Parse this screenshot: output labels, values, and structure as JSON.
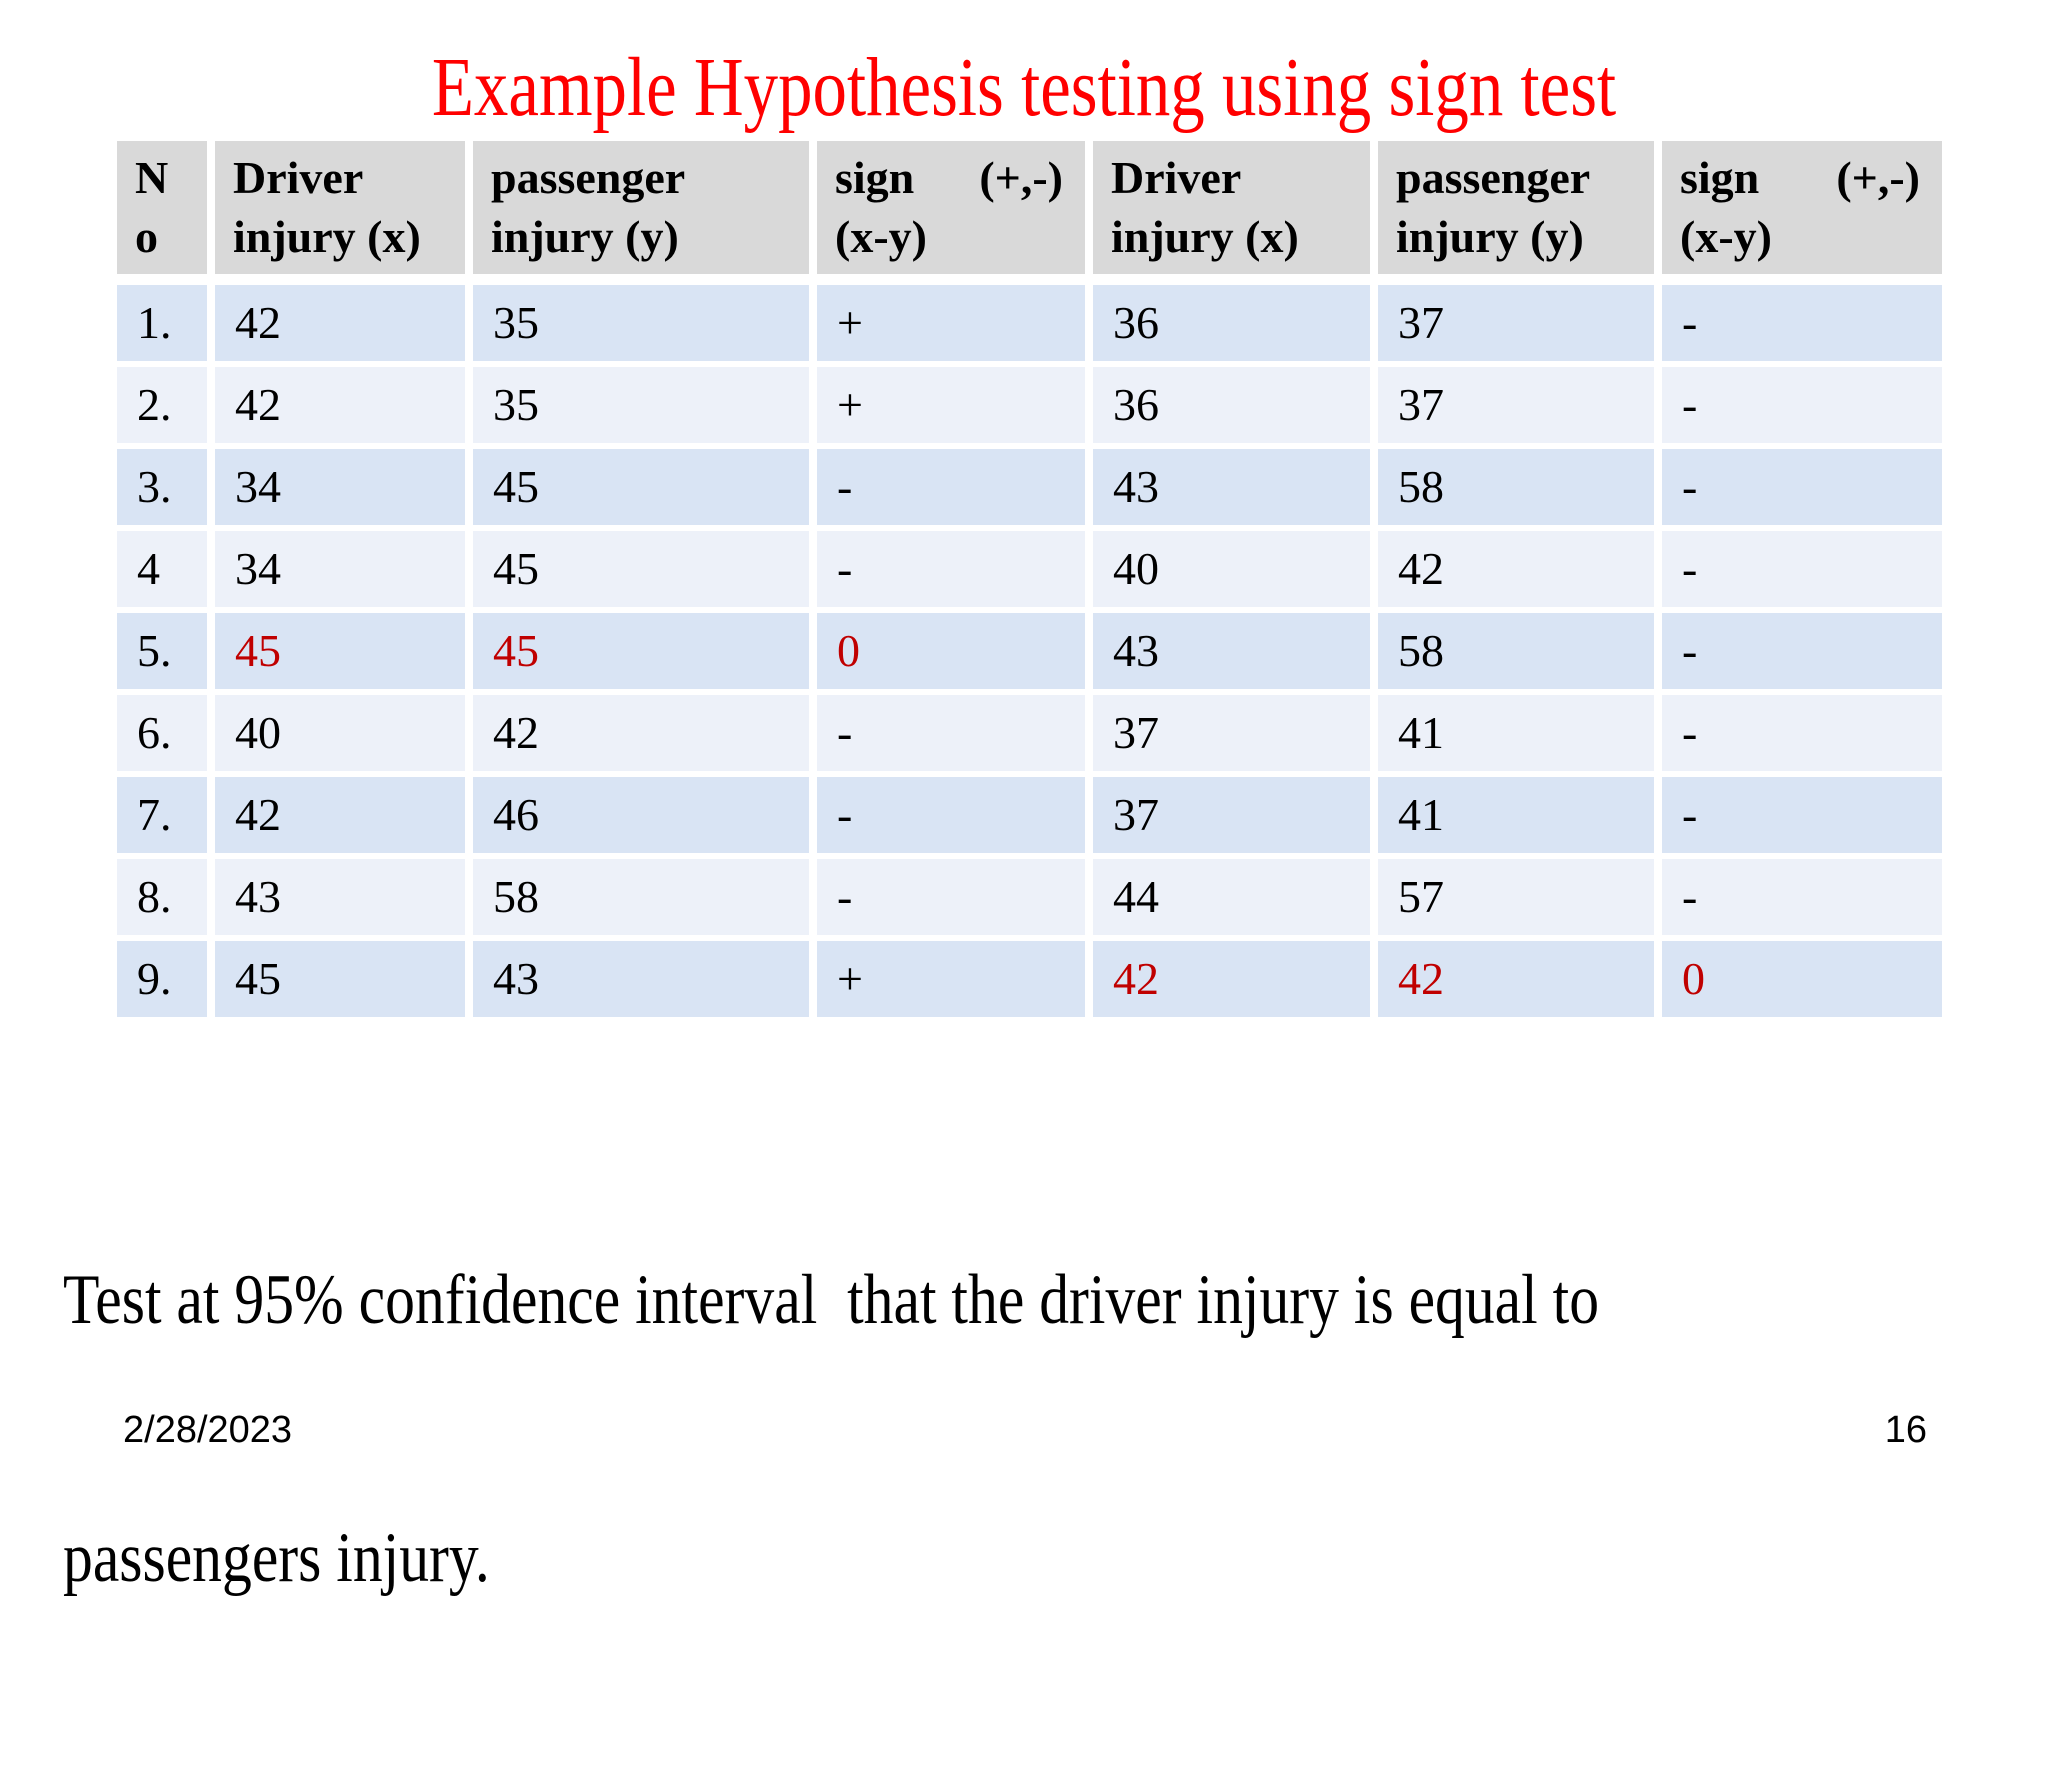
{
  "slide": {
    "title": "Example Hypothesis testing using sign test",
    "body_lines": [
      "Test at 95% confidence interval  that the driver injury is equal to",
      "passengers injury."
    ],
    "footer": {
      "date": "2/28/2023",
      "page_number": "16"
    }
  },
  "colors": {
    "title_red": "#FF0000",
    "highlight_red": "#C00000",
    "header_bg": "#D9D9D9",
    "band_dark": "#D9E4F4",
    "band_light": "#EDF1F9",
    "text": "#000000"
  },
  "table": {
    "columns": [
      {
        "id": "no",
        "line1": "N",
        "line2": "o"
      },
      {
        "id": "x1",
        "line1": "Driver",
        "line2": "injury (x)"
      },
      {
        "id": "y1",
        "line1": "passenger",
        "line2": "injury (y)"
      },
      {
        "id": "s1",
        "line1": "sign",
        "line1_right": "(+,-)",
        "line2": "(x-y)"
      },
      {
        "id": "x2",
        "line1": "Driver",
        "line2": "injury (x)"
      },
      {
        "id": "y2",
        "line1": "passenger",
        "line2": "injury (y)"
      },
      {
        "id": "s2",
        "line1": "sign",
        "line1_right": "(+,-)",
        "line2": "(x-y)"
      }
    ],
    "rows": [
      {
        "no": "1.",
        "x1": "42",
        "y1": "35",
        "s1": "+",
        "x2": "36",
        "y2": "37",
        "s2": "-",
        "red": []
      },
      {
        "no": "2.",
        "x1": "42",
        "y1": "35",
        "s1": "+",
        "x2": "36",
        "y2": "37",
        "s2": "-",
        "red": []
      },
      {
        "no": "3.",
        "x1": "34",
        "y1": "45",
        "s1": "-",
        "x2": "43",
        "y2": "58",
        "s2": "-",
        "red": []
      },
      {
        "no": "4",
        "x1": "34",
        "y1": "45",
        "s1": "-",
        "x2": "40",
        "y2": "42",
        "s2": "-",
        "red": []
      },
      {
        "no": "5.",
        "x1": "45",
        "y1": "45",
        "s1": "0",
        "x2": "43",
        "y2": "58",
        "s2": "-",
        "red": [
          "x1",
          "y1",
          "s1"
        ]
      },
      {
        "no": "6.",
        "x1": "40",
        "y1": "42",
        "s1": "-",
        "x2": "37",
        "y2": "41",
        "s2": "-",
        "red": []
      },
      {
        "no": "7.",
        "x1": "42",
        "y1": "46",
        "s1": "-",
        "x2": "37",
        "y2": "41",
        "s2": "-",
        "red": []
      },
      {
        "no": "8.",
        "x1": "43",
        "y1": "58",
        "s1": "-",
        "x2": "44",
        "y2": "57",
        "s2": "-",
        "red": []
      },
      {
        "no": "9.",
        "x1": "45",
        "y1": "43",
        "s1": "+",
        "x2": "42",
        "y2": "42",
        "s2": "0",
        "red": [
          "x2",
          "y2",
          "s2"
        ]
      }
    ]
  }
}
